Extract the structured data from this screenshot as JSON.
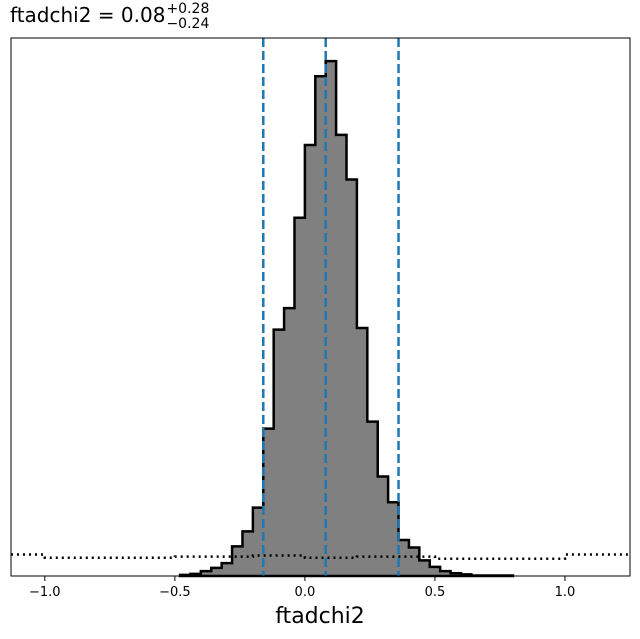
{
  "chart_data": {
    "type": "histogram",
    "title": {
      "main": "ftadchi2 = 0.08",
      "sup": "+0.28",
      "sub": "−0.24"
    },
    "xlabel": "ftadchi2",
    "ylabel": "",
    "xlim": [
      -1.13,
      1.25
    ],
    "ylim": [
      0,
      1.0
    ],
    "yticks_shown": false,
    "xticks": [
      {
        "value": -1.0,
        "label": "−1.0"
      },
      {
        "value": -0.5,
        "label": "−0.5"
      },
      {
        "value": 0.0,
        "label": "0.0"
      },
      {
        "value": 0.5,
        "label": "0.5"
      },
      {
        "value": 1.0,
        "label": "1.0"
      }
    ],
    "posterior": {
      "bin_edges": [
        -0.48,
        -0.44,
        -0.4,
        -0.36,
        -0.32,
        -0.28,
        -0.24,
        -0.2,
        -0.16,
        -0.12,
        -0.08,
        -0.04,
        0.0,
        0.04,
        0.08,
        0.12,
        0.16,
        0.2,
        0.24,
        0.28,
        0.32,
        0.36,
        0.4,
        0.44,
        0.48,
        0.52,
        0.56,
        0.6,
        0.64,
        0.68,
        0.72,
        0.76,
        0.8
      ],
      "heights": [
        0.002,
        0.004,
        0.009,
        0.015,
        0.024,
        0.055,
        0.083,
        0.127,
        0.274,
        0.458,
        0.498,
        0.666,
        0.801,
        0.929,
        0.957,
        0.82,
        0.737,
        0.461,
        0.287,
        0.185,
        0.137,
        0.067,
        0.053,
        0.029,
        0.017,
        0.009,
        0.005,
        0.003,
        0.001,
        0.001,
        0.001,
        0.001
      ]
    },
    "prior": {
      "x": [
        -1.13,
        -1.0,
        -1.0,
        -0.5,
        -0.5,
        -0.2,
        -0.2,
        0.0,
        0.0,
        0.2,
        0.2,
        0.5,
        0.5,
        1.0,
        1.0,
        1.25
      ],
      "y": [
        0.04,
        0.04,
        0.034,
        0.034,
        0.036,
        0.036,
        0.038,
        0.038,
        0.034,
        0.034,
        0.036,
        0.036,
        0.032,
        0.032,
        0.04,
        0.04
      ]
    },
    "vlines": [
      {
        "name": "lower",
        "value": -0.16
      },
      {
        "name": "median",
        "value": 0.08
      },
      {
        "name": "upper",
        "value": 0.36
      }
    ],
    "colors": {
      "fill": "#808080",
      "edge": "#000000",
      "vline": "#1f77b4",
      "prior": "#000000"
    }
  }
}
